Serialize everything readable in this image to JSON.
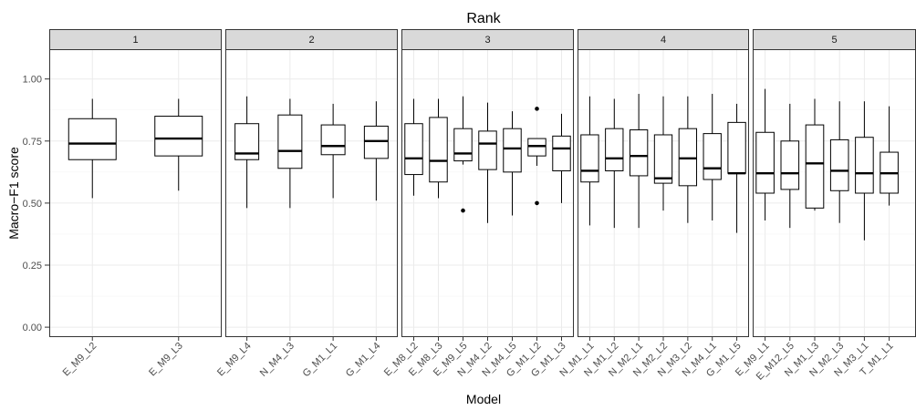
{
  "chart_data": {
    "type": "boxplot",
    "title": "Rank",
    "xlabel": "Model",
    "ylabel": "Macro−F1 score",
    "ylim": [
      -0.04,
      1.12
    ],
    "yticks": [
      0.0,
      0.25,
      0.5,
      0.75,
      1.0
    ],
    "ytick_labels": [
      "0.00",
      "0.25",
      "0.50",
      "0.75",
      "1.00"
    ],
    "grid": true,
    "facets": [
      {
        "label": "1",
        "boxes": [
          {
            "model": "E_M9_L2",
            "lower": 0.52,
            "q1": 0.675,
            "median": 0.74,
            "q3": 0.84,
            "upper": 0.92,
            "outliers": []
          },
          {
            "model": "E_M9_L3",
            "lower": 0.55,
            "q1": 0.69,
            "median": 0.76,
            "q3": 0.85,
            "upper": 0.92,
            "outliers": []
          }
        ]
      },
      {
        "label": "2",
        "boxes": [
          {
            "model": "E_M9_L4",
            "lower": 0.48,
            "q1": 0.675,
            "median": 0.7,
            "q3": 0.82,
            "upper": 0.93,
            "outliers": []
          },
          {
            "model": "N_M4_L3",
            "lower": 0.48,
            "q1": 0.64,
            "median": 0.71,
            "q3": 0.855,
            "upper": 0.92,
            "outliers": []
          },
          {
            "model": "G_M1_L1",
            "lower": 0.52,
            "q1": 0.695,
            "median": 0.73,
            "q3": 0.815,
            "upper": 0.9,
            "outliers": []
          },
          {
            "model": "G_M1_L4",
            "lower": 0.51,
            "q1": 0.68,
            "median": 0.75,
            "q3": 0.81,
            "upper": 0.91,
            "outliers": []
          }
        ]
      },
      {
        "label": "3",
        "boxes": [
          {
            "model": "E_M8_L2",
            "lower": 0.53,
            "q1": 0.615,
            "median": 0.68,
            "q3": 0.82,
            "upper": 0.92,
            "outliers": []
          },
          {
            "model": "E_M8_L3",
            "lower": 0.52,
            "q1": 0.585,
            "median": 0.67,
            "q3": 0.845,
            "upper": 0.92,
            "outliers": []
          },
          {
            "model": "E_M9_L5",
            "lower": 0.655,
            "q1": 0.67,
            "median": 0.7,
            "q3": 0.8,
            "upper": 0.93,
            "outliers": [
              0.47
            ]
          },
          {
            "model": "N_M4_L2",
            "lower": 0.42,
            "q1": 0.635,
            "median": 0.74,
            "q3": 0.79,
            "upper": 0.905,
            "outliers": []
          },
          {
            "model": "N_M4_L5",
            "lower": 0.45,
            "q1": 0.625,
            "median": 0.72,
            "q3": 0.8,
            "upper": 0.87,
            "outliers": []
          },
          {
            "model": "G_M1_L2",
            "lower": 0.65,
            "q1": 0.69,
            "median": 0.73,
            "q3": 0.76,
            "upper": 0.76,
            "outliers": [
              0.88,
              0.5
            ]
          },
          {
            "model": "G_M1_L3",
            "lower": 0.5,
            "q1": 0.63,
            "median": 0.72,
            "q3": 0.77,
            "upper": 0.86,
            "outliers": []
          }
        ]
      },
      {
        "label": "4",
        "boxes": [
          {
            "model": "N_M1_L1",
            "lower": 0.41,
            "q1": 0.585,
            "median": 0.63,
            "q3": 0.775,
            "upper": 0.93,
            "outliers": []
          },
          {
            "model": "N_M1_L2",
            "lower": 0.4,
            "q1": 0.63,
            "median": 0.68,
            "q3": 0.8,
            "upper": 0.92,
            "outliers": []
          },
          {
            "model": "N_M2_L1",
            "lower": 0.4,
            "q1": 0.61,
            "median": 0.69,
            "q3": 0.795,
            "upper": 0.94,
            "outliers": []
          },
          {
            "model": "N_M2_L2",
            "lower": 0.47,
            "q1": 0.58,
            "median": 0.6,
            "q3": 0.775,
            "upper": 0.93,
            "outliers": []
          },
          {
            "model": "N_M3_L2",
            "lower": 0.42,
            "q1": 0.57,
            "median": 0.68,
            "q3": 0.8,
            "upper": 0.93,
            "outliers": []
          },
          {
            "model": "N_M4_L1",
            "lower": 0.43,
            "q1": 0.595,
            "median": 0.64,
            "q3": 0.78,
            "upper": 0.94,
            "outliers": []
          },
          {
            "model": "G_M1_L5",
            "lower": 0.38,
            "q1": 0.62,
            "median": 0.62,
            "q3": 0.825,
            "upper": 0.9,
            "outliers": []
          }
        ]
      },
      {
        "label": "5",
        "boxes": [
          {
            "model": "E_M9_L1",
            "lower": 0.43,
            "q1": 0.54,
            "median": 0.62,
            "q3": 0.785,
            "upper": 0.96,
            "outliers": []
          },
          {
            "model": "E_M12_L5",
            "lower": 0.4,
            "q1": 0.555,
            "median": 0.62,
            "q3": 0.75,
            "upper": 0.9,
            "outliers": []
          },
          {
            "model": "N_M1_L3",
            "lower": 0.47,
            "q1": 0.48,
            "median": 0.66,
            "q3": 0.815,
            "upper": 0.92,
            "outliers": []
          },
          {
            "model": "N_M2_L3",
            "lower": 0.42,
            "q1": 0.55,
            "median": 0.63,
            "q3": 0.755,
            "upper": 0.91,
            "outliers": []
          },
          {
            "model": "N_M3_L1",
            "lower": 0.35,
            "q1": 0.54,
            "median": 0.62,
            "q3": 0.765,
            "upper": 0.91,
            "outliers": []
          },
          {
            "model": "T_M1_L1",
            "lower": 0.49,
            "q1": 0.54,
            "median": 0.62,
            "q3": 0.705,
            "upper": 0.89,
            "outliers": []
          }
        ]
      }
    ],
    "colors": {
      "panel_bg": "#ffffff",
      "panel_border": "#333333",
      "strip_bg": "#d9d9d9",
      "grid_major": "#ebebeb",
      "grid_minor": "#f5f5f5",
      "box_line": "#000000",
      "axis_text": "#4d4d4d"
    }
  }
}
